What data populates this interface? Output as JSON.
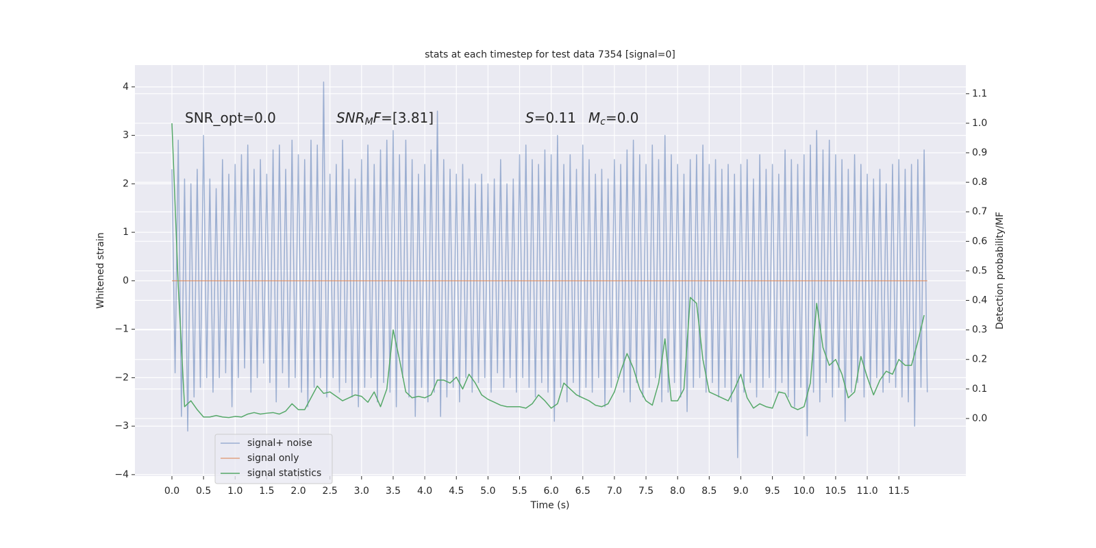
{
  "chart_data": {
    "type": "line",
    "title": "stats at each timestep for test data 7354 [signal=0]",
    "xlabel": "Time (s)",
    "ylabel": "Whitened strain",
    "y2label": "Detection probability/MF",
    "annotations": [
      [
        "SNR_opt=0.0"
      ],
      [
        "SNR",
        "M",
        "F",
        "=[3.81]"
      ],
      [
        "S",
        "=0.11"
      ],
      [
        "M",
        "c",
        "=0.0"
      ]
    ],
    "xlim": [
      -0.585,
      12.56
    ],
    "ylim": [
      -4.03,
      4.45
    ],
    "y2lim": [
      -0.195,
      1.197
    ],
    "xticks": [
      {
        "value": 0,
        "label": "0.0"
      },
      {
        "value": 0.5,
        "label": "0.5"
      },
      {
        "value": 1,
        "label": "1.0"
      },
      {
        "value": 1.5,
        "label": "1.5"
      },
      {
        "value": 2,
        "label": "2.0"
      },
      {
        "value": 2.5,
        "label": "2.5"
      },
      {
        "value": 3,
        "label": "3.0"
      },
      {
        "value": 3.5,
        "label": "3.5"
      },
      {
        "value": 4,
        "label": "4.0"
      },
      {
        "value": 4.5,
        "label": "4.5"
      },
      {
        "value": 5,
        "label": "5.0"
      },
      {
        "value": 5.5,
        "label": "5.5"
      },
      {
        "value": 6,
        "label": "6.0"
      },
      {
        "value": 6.5,
        "label": "6.5"
      },
      {
        "value": 7,
        "label": "7.0"
      },
      {
        "value": 7.5,
        "label": "7.5"
      },
      {
        "value": 8,
        "label": "8.0"
      },
      {
        "value": 8.5,
        "label": "8.5"
      },
      {
        "value": 9,
        "label": "9.0"
      },
      {
        "value": 9.5,
        "label": "9.5"
      },
      {
        "value": 10,
        "label": "10.0"
      },
      {
        "value": 10.5,
        "label": "10.5"
      },
      {
        "value": 11,
        "label": "11.0"
      },
      {
        "value": 11.5,
        "label": "11.5"
      }
    ],
    "yticks": [
      {
        "value": -4,
        "label": "−4"
      },
      {
        "value": -3,
        "label": "−3"
      },
      {
        "value": -2,
        "label": "−2"
      },
      {
        "value": -1,
        "label": "−1"
      },
      0,
      1,
      2,
      3,
      4
    ],
    "y2ticks": [
      {
        "value": 0,
        "label": "0.0"
      },
      {
        "value": 0.1,
        "label": "0.1"
      },
      {
        "value": 0.2,
        "label": "0.2"
      },
      {
        "value": 0.3,
        "label": "0.3"
      },
      {
        "value": 0.4,
        "label": "0.4"
      },
      {
        "value": 0.5,
        "label": "0.5"
      },
      {
        "value": 0.6,
        "label": "0.6"
      },
      {
        "value": 0.7,
        "label": "0.7"
      },
      {
        "value": 0.8,
        "label": "0.8"
      },
      {
        "value": 0.9,
        "label": "0.9"
      },
      {
        "value": 1,
        "label": "1.0"
      },
      {
        "value": 1.1,
        "label": "1.1"
      }
    ],
    "grid": true,
    "legend": "lower left",
    "series": [
      {
        "name": "signal+ noise",
        "color": "#4c72b0",
        "opacity": 0.5,
        "x": [
          0,
          0.05,
          0.1,
          0.15,
          0.2,
          0.25,
          0.3,
          0.35,
          0.4,
          0.45,
          0.5,
          0.55,
          0.6,
          0.65,
          0.7,
          0.75,
          0.8,
          0.85,
          0.9,
          0.95,
          1,
          1.05,
          1.1,
          1.15,
          1.2,
          1.25,
          1.3,
          1.35,
          1.4,
          1.45,
          1.5,
          1.55,
          1.6,
          1.65,
          1.7,
          1.75,
          1.8,
          1.85,
          1.9,
          1.95,
          2,
          2.05,
          2.1,
          2.15,
          2.2,
          2.25,
          2.3,
          2.35,
          2.4,
          2.45,
          2.5,
          2.55,
          2.6,
          2.65,
          2.7,
          2.75,
          2.8,
          2.85,
          2.9,
          2.95,
          3,
          3.05,
          3.1,
          3.15,
          3.2,
          3.25,
          3.3,
          3.35,
          3.4,
          3.45,
          3.5,
          3.55,
          3.6,
          3.65,
          3.7,
          3.75,
          3.8,
          3.85,
          3.9,
          3.95,
          4,
          4.05,
          4.1,
          4.15,
          4.2,
          4.25,
          4.3,
          4.35,
          4.4,
          4.45,
          4.5,
          4.55,
          4.6,
          4.65,
          4.7,
          4.75,
          4.8,
          4.85,
          4.9,
          4.95,
          5,
          5.05,
          5.1,
          5.15,
          5.2,
          5.25,
          5.3,
          5.35,
          5.4,
          5.45,
          5.5,
          5.55,
          5.6,
          5.65,
          5.7,
          5.75,
          5.8,
          5.85,
          5.9,
          5.95,
          6,
          6.05,
          6.1,
          6.15,
          6.2,
          6.25,
          6.3,
          6.35,
          6.4,
          6.45,
          6.5,
          6.55,
          6.6,
          6.65,
          6.7,
          6.75,
          6.8,
          6.85,
          6.9,
          6.95,
          7,
          7.05,
          7.1,
          7.15,
          7.2,
          7.25,
          7.3,
          7.35,
          7.4,
          7.45,
          7.5,
          7.55,
          7.6,
          7.65,
          7.7,
          7.75,
          7.8,
          7.85,
          7.9,
          7.95,
          8,
          8.05,
          8.1,
          8.15,
          8.2,
          8.25,
          8.3,
          8.35,
          8.4,
          8.45,
          8.5,
          8.55,
          8.6,
          8.65,
          8.7,
          8.75,
          8.8,
          8.85,
          8.9,
          8.95,
          9,
          9.05,
          9.1,
          9.15,
          9.2,
          9.25,
          9.3,
          9.35,
          9.4,
          9.45,
          9.5,
          9.55,
          9.6,
          9.65,
          9.7,
          9.75,
          9.8,
          9.85,
          9.9,
          9.95,
          10,
          10.05,
          10.1,
          10.15,
          10.2,
          10.25,
          10.3,
          10.35,
          10.4,
          10.45,
          10.5,
          10.55,
          10.6,
          10.65,
          10.7,
          10.75,
          10.8,
          10.85,
          10.9,
          10.95,
          11,
          11.05,
          11.1,
          11.15,
          11.2,
          11.25,
          11.3,
          11.35,
          11.4,
          11.45,
          11.5,
          11.55,
          11.6,
          11.65,
          11.7,
          11.75,
          11.8,
          11.85,
          11.9,
          11.95
        ],
        "values": [
          2.3,
          -1.9,
          2.9,
          -2.8,
          2.1,
          -3.1,
          2.0,
          -2.4,
          2.3,
          -2.2,
          3.0,
          -2.0,
          2.1,
          -2.3,
          1.9,
          -2.0,
          2.5,
          -1.9,
          2.2,
          -2.6,
          2.4,
          -2.0,
          2.6,
          -1.8,
          2.8,
          -2.3,
          2.3,
          -2.0,
          2.5,
          -1.7,
          2.2,
          -2.1,
          2.7,
          -2.5,
          2.8,
          -1.9,
          2.3,
          -2.2,
          2.9,
          -2.0,
          2.6,
          -2.3,
          2.5,
          -2.6,
          2.9,
          -2.2,
          2.8,
          -2.0,
          4.1,
          -2.4,
          2.2,
          -2.0,
          2.4,
          -2.3,
          2.9,
          -2.1,
          2.3,
          -2.4,
          2.1,
          -2.6,
          2.5,
          -2.2,
          2.8,
          -2.0,
          2.4,
          -2.5,
          2.7,
          -2.1,
          2.9,
          -2.3,
          3.1,
          -2.6,
          2.6,
          -2.0,
          2.9,
          -2.4,
          2.5,
          -2.8,
          2.2,
          -2.2,
          2.4,
          -2.5,
          2.7,
          -2.3,
          3.5,
          -2.8,
          2.5,
          -2.4,
          2.3,
          -2.2,
          2.2,
          -2.5,
          2.4,
          -2.0,
          2.1,
          -2.3,
          2.0,
          -2.1,
          2.2,
          -2.0,
          2.0,
          -2.3,
          2.1,
          -1.9,
          2.5,
          -2.2,
          2.0,
          -2.0,
          2.1,
          -2.3,
          2.6,
          -2.0,
          2.8,
          -2.2,
          2.5,
          -2.4,
          2.4,
          -2.1,
          2.7,
          -2.3,
          2.6,
          -2.9,
          3.0,
          -2.2,
          2.4,
          -2.5,
          2.6,
          -2.1,
          2.3,
          -2.4,
          2.8,
          -2.2,
          2.5,
          -2.3,
          2.2,
          -2.0,
          2.3,
          -2.6,
          2.1,
          -2.2,
          2.5,
          -2.0,
          2.4,
          -2.3,
          2.7,
          -2.5,
          2.9,
          -2.1,
          2.6,
          -2.4,
          2.4,
          -2.2,
          2.8,
          -2.0,
          2.5,
          -2.5,
          3.0,
          -2.3,
          2.6,
          -2.1,
          2.4,
          -2.4,
          2.2,
          -2.7,
          2.5,
          -2.2,
          2.6,
          -2.0,
          2.8,
          -2.3,
          2.4,
          -2.1,
          2.5,
          -2.4,
          2.3,
          -2.2,
          2.4,
          -2.5,
          2.2,
          -3.65,
          2.4,
          -2.3,
          2.5,
          -2.1,
          2.1,
          -2.4,
          2.6,
          -2.2,
          2.3,
          -2.0,
          2.4,
          -2.3,
          2.2,
          -2.1,
          2.7,
          -2.4,
          2.5,
          -2.6,
          2.4,
          -2.2,
          2.6,
          -3.2,
          2.8,
          -2.3,
          3.1,
          -2.5,
          2.7,
          -2.1,
          2.9,
          -2.4,
          2.6,
          -2.2,
          2.5,
          -2.9,
          2.3,
          -2.3,
          2.6,
          -2.1,
          2.4,
          -2.4,
          2.2,
          -2.2,
          2.1,
          -2.0,
          2.3,
          -2.3,
          2.0,
          -2.1,
          2.4,
          -2.2,
          2.5,
          -2.4,
          2.3,
          -2.5,
          2.4,
          -3.0,
          2.5,
          -2.2,
          2.7,
          -2.3
        ]
      },
      {
        "name": "signal only",
        "color": "#dd8452",
        "opacity": 0.7,
        "x": [
          0,
          11.95
        ],
        "values": [
          0,
          0
        ]
      },
      {
        "name": "signal statistics",
        "color": "#55a868",
        "opacity": 1,
        "axis": "y2",
        "x": [
          0,
          0.1,
          0.2,
          0.3,
          0.4,
          0.5,
          0.6,
          0.7,
          0.8,
          0.9,
          1,
          1.1,
          1.2,
          1.3,
          1.4,
          1.5,
          1.6,
          1.7,
          1.8,
          1.9,
          2,
          2.1,
          2.2,
          2.3,
          2.4,
          2.5,
          2.6,
          2.7,
          2.8,
          2.9,
          3,
          3.1,
          3.2,
          3.3,
          3.4,
          3.5,
          3.6,
          3.7,
          3.8,
          3.9,
          4,
          4.1,
          4.2,
          4.3,
          4.4,
          4.5,
          4.6,
          4.7,
          4.8,
          4.9,
          5,
          5.1,
          5.2,
          5.3,
          5.4,
          5.5,
          5.6,
          5.7,
          5.8,
          5.9,
          6,
          6.1,
          6.2,
          6.3,
          6.4,
          6.5,
          6.6,
          6.7,
          6.8,
          6.9,
          7,
          7.1,
          7.2,
          7.3,
          7.4,
          7.5,
          7.6,
          7.7,
          7.8,
          7.9,
          8,
          8.1,
          8.2,
          8.3,
          8.4,
          8.5,
          8.6,
          8.7,
          8.8,
          8.9,
          9,
          9.1,
          9.2,
          9.3,
          9.4,
          9.5,
          9.6,
          9.7,
          9.8,
          9.9,
          10,
          10.1,
          10.2,
          10.3,
          10.4,
          10.5,
          10.6,
          10.7,
          10.8,
          10.9,
          11,
          11.1,
          11.2,
          11.3,
          11.4,
          11.5,
          11.6,
          11.7,
          11.8,
          11.9
        ],
        "values": [
          1.0,
          0.45,
          0.04,
          0.06,
          0.03,
          0.005,
          0.005,
          0.01,
          0.005,
          0.003,
          0.007,
          0.005,
          0.015,
          0.02,
          0.015,
          0.018,
          0.02,
          0.015,
          0.025,
          0.05,
          0.03,
          0.03,
          0.07,
          0.11,
          0.085,
          0.09,
          0.075,
          0.06,
          0.07,
          0.08,
          0.075,
          0.055,
          0.09,
          0.04,
          0.1,
          0.3,
          0.2,
          0.09,
          0.07,
          0.075,
          0.07,
          0.08,
          0.13,
          0.13,
          0.12,
          0.14,
          0.1,
          0.15,
          0.12,
          0.08,
          0.065,
          0.055,
          0.045,
          0.04,
          0.04,
          0.04,
          0.035,
          0.05,
          0.08,
          0.06,
          0.035,
          0.05,
          0.12,
          0.1,
          0.08,
          0.07,
          0.06,
          0.045,
          0.04,
          0.05,
          0.09,
          0.16,
          0.22,
          0.17,
          0.1,
          0.06,
          0.045,
          0.12,
          0.27,
          0.06,
          0.06,
          0.1,
          0.41,
          0.39,
          0.2,
          0.09,
          0.08,
          0.07,
          0.06,
          0.1,
          0.15,
          0.07,
          0.035,
          0.05,
          0.04,
          0.035,
          0.09,
          0.085,
          0.04,
          0.03,
          0.04,
          0.12,
          0.39,
          0.24,
          0.18,
          0.2,
          0.15,
          0.07,
          0.09,
          0.21,
          0.14,
          0.08,
          0.13,
          0.16,
          0.15,
          0.2,
          0.18,
          0.18,
          0.26,
          0.35
        ]
      }
    ]
  }
}
